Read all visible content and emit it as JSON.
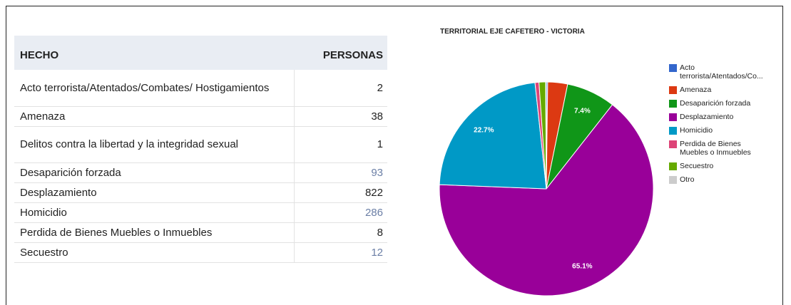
{
  "table": {
    "headers": [
      "HECHO",
      "PERSONAS"
    ],
    "rows": [
      [
        "Acto terrorista/Atentados/Combates/ Hostigamientos",
        2
      ],
      [
        "Amenaza",
        38
      ],
      [
        "Delitos contra la libertad y la integridad sexual",
        1
      ],
      [
        "Desaparición forzada",
        93
      ],
      [
        "Desplazamiento",
        822
      ],
      [
        "Homicidio",
        286
      ],
      [
        "Perdida de Bienes Muebles o Inmuebles",
        8
      ],
      [
        "Secuestro",
        12
      ]
    ]
  },
  "chart_data": {
    "type": "pie",
    "title": "TERRITORIAL EJE CAFETERO - VICTORIA",
    "categories": [
      "Acto terrorista/Atentados/Co...",
      "Amenaza",
      "Desaparición forzada",
      "Desplazamiento",
      "Homicidio",
      "Perdida de Bienes Muebles o Inmuebles",
      "Secuestro",
      "Otro"
    ],
    "values": [
      0.2,
      3.0,
      7.4,
      65.1,
      22.7,
      0.6,
      1.0,
      0.1
    ],
    "value_labels": [
      null,
      null,
      "7.4%",
      "65.1%",
      "22.7%",
      null,
      null,
      null
    ],
    "colors": [
      "#3366cc",
      "#dc3912",
      "#109618",
      "#990099",
      "#0099c6",
      "#dd4477",
      "#66aa00",
      "#cccccc"
    ],
    "legend": "right"
  }
}
